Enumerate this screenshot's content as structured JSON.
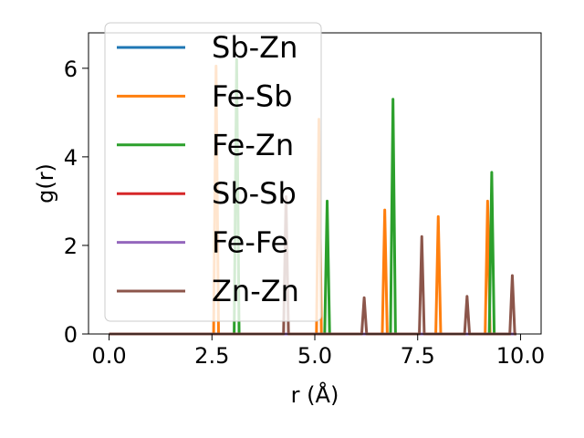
{
  "chart_data": {
    "type": "line",
    "title": "",
    "xlabel": "r (Å)",
    "ylabel": "g(r)",
    "xlim": [
      -0.5,
      10.5
    ],
    "ylim": [
      0,
      6.8
    ],
    "xticks": [
      0.0,
      2.5,
      5.0,
      7.5,
      10.0
    ],
    "xtick_labels": [
      "0.0",
      "2.5",
      "5.0",
      "7.5",
      "10.0"
    ],
    "yticks": [
      0,
      2,
      4,
      6
    ],
    "ytick_labels": [
      "0",
      "2",
      "4",
      "6"
    ],
    "grid": false,
    "legend_position": "upper-left",
    "series": [
      {
        "name": "Sb-Zn",
        "color": "#1f77b4",
        "peaks": []
      },
      {
        "name": "Fe-Sb",
        "color": "#ff7f0e",
        "peaks": [
          [
            2.6,
            6.05
          ],
          [
            5.1,
            4.85
          ],
          [
            6.7,
            2.8
          ],
          [
            8.0,
            2.65
          ],
          [
            9.2,
            3.0
          ]
        ]
      },
      {
        "name": "Fe-Zn",
        "color": "#2ca02c",
        "peaks": [
          [
            3.1,
            6.2
          ],
          [
            5.3,
            3.0
          ],
          [
            6.9,
            5.3
          ],
          [
            9.3,
            3.65
          ]
        ]
      },
      {
        "name": "Sb-Sb",
        "color": "#d62728",
        "peaks": []
      },
      {
        "name": "Fe-Fe",
        "color": "#9467bd",
        "peaks": []
      },
      {
        "name": "Zn-Zn",
        "color": "#8c564b",
        "peaks": [
          [
            4.3,
            3.1
          ],
          [
            6.2,
            0.82
          ],
          [
            7.6,
            2.2
          ],
          [
            8.7,
            0.85
          ],
          [
            9.8,
            1.32
          ]
        ]
      }
    ]
  }
}
